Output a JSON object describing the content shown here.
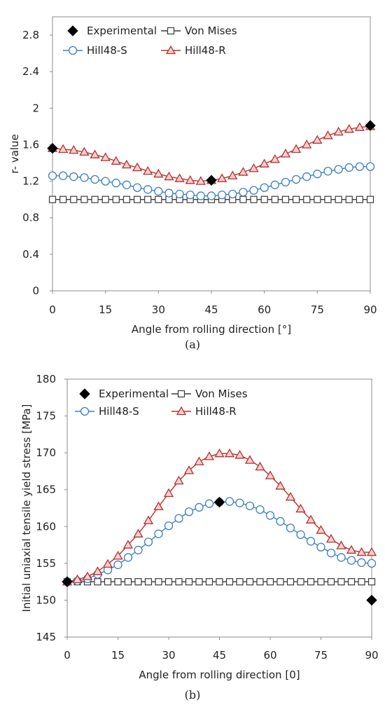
{
  "colors": {
    "experimental": "#000000",
    "von_mises": "#3a3a3a",
    "hill48_s": "#3b7fc4",
    "hill48_r": "#b5322a",
    "hill48_r_fill": "#f7cfd3",
    "hill48_s_fill": "#ffffff"
  },
  "chart_data": [
    {
      "id": "a",
      "type": "line",
      "caption": "(a)",
      "xlabel": "Angle from rolling direction [°]",
      "ylabel": "r- value",
      "xlim": [
        0,
        90
      ],
      "ylim": [
        0,
        3.0
      ],
      "xticks": [
        0,
        15,
        30,
        45,
        60,
        75,
        90
      ],
      "xtick_labels": [
        "0",
        "15",
        "30",
        "45",
        "60",
        "75",
        "90"
      ],
      "yticks": [
        0,
        0.4,
        0.8,
        1.2,
        1.6,
        2.0,
        2.4,
        2.8
      ],
      "ytick_labels": [
        "0",
        "0.4",
        "0.8",
        "1.2",
        "1.6",
        "2",
        "2.4",
        "2.8"
      ],
      "grid": false,
      "legend_position": "top",
      "legend_columns": 2,
      "series": [
        {
          "name": "Experimental",
          "key": "experimental",
          "marker": "diamond",
          "line": false,
          "x": [
            0,
            45,
            90
          ],
          "y": [
            1.56,
            1.21,
            1.81
          ]
        },
        {
          "name": "Von Mises",
          "key": "von_mises",
          "marker": "square",
          "line": true,
          "x": [
            0,
            3,
            6,
            9,
            12,
            15,
            18,
            21,
            24,
            27,
            30,
            33,
            36,
            39,
            42,
            45,
            48,
            51,
            54,
            57,
            60,
            63,
            66,
            69,
            72,
            75,
            78,
            81,
            84,
            87,
            90
          ],
          "y": [
            1.0,
            1.0,
            1.0,
            1.0,
            1.0,
            1.0,
            1.0,
            1.0,
            1.0,
            1.0,
            1.0,
            1.0,
            1.0,
            1.0,
            1.0,
            1.0,
            1.0,
            1.0,
            1.0,
            1.0,
            1.0,
            1.0,
            1.0,
            1.0,
            1.0,
            1.0,
            1.0,
            1.0,
            1.0,
            1.0,
            1.0
          ]
        },
        {
          "name": "Hill48-S",
          "key": "hill48_s",
          "marker": "circle",
          "line": true,
          "x": [
            0,
            3,
            6,
            9,
            12,
            15,
            18,
            21,
            24,
            27,
            30,
            33,
            36,
            39,
            42,
            45,
            48,
            51,
            54,
            57,
            60,
            63,
            66,
            69,
            72,
            75,
            78,
            81,
            84,
            87,
            90
          ],
          "y": [
            1.26,
            1.26,
            1.25,
            1.24,
            1.22,
            1.2,
            1.18,
            1.16,
            1.13,
            1.11,
            1.09,
            1.07,
            1.06,
            1.05,
            1.04,
            1.04,
            1.05,
            1.06,
            1.08,
            1.1,
            1.13,
            1.16,
            1.19,
            1.22,
            1.25,
            1.28,
            1.31,
            1.33,
            1.35,
            1.36,
            1.36
          ]
        },
        {
          "name": "Hill48-R",
          "key": "hill48_r",
          "marker": "triangle",
          "line": true,
          "x": [
            0,
            3,
            6,
            9,
            12,
            15,
            18,
            21,
            24,
            27,
            30,
            33,
            36,
            39,
            42,
            45,
            48,
            51,
            54,
            57,
            60,
            63,
            66,
            69,
            72,
            75,
            78,
            81,
            84,
            87,
            90
          ],
          "y": [
            1.56,
            1.55,
            1.54,
            1.52,
            1.49,
            1.46,
            1.42,
            1.38,
            1.35,
            1.31,
            1.28,
            1.25,
            1.23,
            1.21,
            1.2,
            1.21,
            1.23,
            1.26,
            1.3,
            1.34,
            1.39,
            1.44,
            1.5,
            1.55,
            1.6,
            1.65,
            1.7,
            1.74,
            1.77,
            1.79,
            1.8
          ]
        }
      ]
    },
    {
      "id": "b",
      "type": "line",
      "caption": "(b)",
      "xlabel": "Angle from rolling direction [0]",
      "ylabel": "Initial uniaxial tensile yield stress [MPa]",
      "xlim": [
        0,
        90
      ],
      "ylim": [
        145,
        180
      ],
      "xticks": [
        0,
        15,
        30,
        45,
        60,
        75,
        90
      ],
      "xtick_labels": [
        "0",
        "15",
        "30",
        "45",
        "60",
        "75",
        "90"
      ],
      "yticks": [
        145,
        150,
        155,
        160,
        165,
        170,
        175,
        180
      ],
      "ytick_labels": [
        "145",
        "150",
        "155",
        "160",
        "165",
        "170",
        "175",
        "180"
      ],
      "grid": false,
      "legend_position": "top",
      "legend_columns": 2,
      "series": [
        {
          "name": "Experimental",
          "key": "experimental",
          "marker": "diamond",
          "line": false,
          "x": [
            0,
            45,
            90
          ],
          "y": [
            152.5,
            163.3,
            150.0
          ]
        },
        {
          "name": "Von Mises",
          "key": "von_mises",
          "marker": "square",
          "line": true,
          "x": [
            0,
            3,
            6,
            9,
            12,
            15,
            18,
            21,
            24,
            27,
            30,
            33,
            36,
            39,
            42,
            45,
            48,
            51,
            54,
            57,
            60,
            63,
            66,
            69,
            72,
            75,
            78,
            81,
            84,
            87,
            90
          ],
          "y": [
            152.5,
            152.5,
            152.5,
            152.5,
            152.5,
            152.5,
            152.5,
            152.5,
            152.5,
            152.5,
            152.5,
            152.5,
            152.5,
            152.5,
            152.5,
            152.5,
            152.5,
            152.5,
            152.5,
            152.5,
            152.5,
            152.5,
            152.5,
            152.5,
            152.5,
            152.5,
            152.5,
            152.5,
            152.5,
            152.5,
            152.5
          ]
        },
        {
          "name": "Hill48-S",
          "key": "hill48_s",
          "marker": "circle",
          "line": true,
          "x": [
            0,
            3,
            6,
            9,
            12,
            15,
            18,
            21,
            24,
            27,
            30,
            33,
            36,
            39,
            42,
            45,
            48,
            51,
            54,
            57,
            60,
            63,
            66,
            69,
            72,
            75,
            78,
            81,
            84,
            87,
            90
          ],
          "y": [
            152.5,
            152.6,
            152.9,
            153.5,
            154.1,
            154.8,
            155.8,
            156.8,
            157.9,
            159.0,
            160.1,
            161.1,
            162.0,
            162.6,
            163.1,
            163.3,
            163.4,
            163.2,
            162.8,
            162.3,
            161.5,
            160.7,
            159.8,
            158.9,
            158.0,
            157.2,
            156.4,
            155.8,
            155.4,
            155.1,
            155.0
          ]
        },
        {
          "name": "Hill48-R",
          "key": "hill48_r",
          "marker": "triangle",
          "line": true,
          "x": [
            0,
            3,
            6,
            9,
            12,
            15,
            18,
            21,
            24,
            27,
            30,
            33,
            36,
            39,
            42,
            45,
            48,
            51,
            54,
            57,
            60,
            63,
            66,
            69,
            72,
            75,
            78,
            81,
            84,
            87,
            90
          ],
          "y": [
            152.5,
            152.8,
            153.2,
            153.9,
            154.9,
            156.0,
            157.5,
            159.0,
            160.8,
            162.7,
            164.5,
            166.2,
            167.6,
            168.8,
            169.5,
            169.9,
            169.9,
            169.7,
            169.0,
            168.1,
            166.9,
            165.5,
            164.0,
            162.4,
            160.9,
            159.5,
            158.3,
            157.4,
            156.8,
            156.5,
            156.5
          ]
        }
      ]
    }
  ]
}
